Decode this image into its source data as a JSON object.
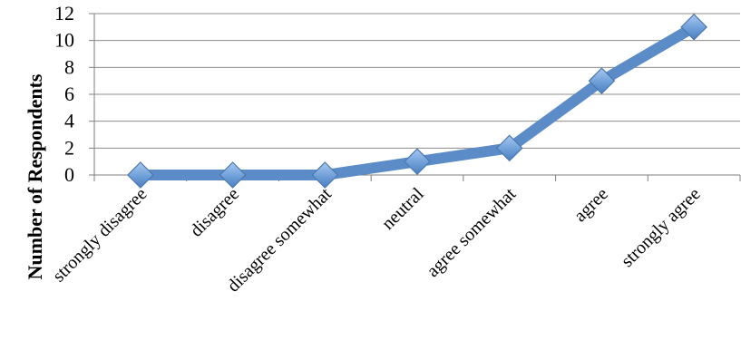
{
  "chart_data": {
    "type": "line",
    "categories": [
      "strongly disagree",
      "disagree",
      "disagree somewhat",
      "neutral",
      "agree somewhat",
      "agree",
      "strongly agree"
    ],
    "values": [
      0,
      0,
      0,
      1,
      2,
      7,
      11
    ],
    "ylabel": "Number of Respondents",
    "xlabel": "",
    "ylim": [
      0,
      12
    ],
    "yticks": [
      0,
      2,
      4,
      6,
      8,
      10,
      12
    ],
    "grid": true,
    "legend": "none",
    "line_color": "#5b8cc8",
    "marker": "diamond",
    "marker_color": "#6f9fd8"
  }
}
